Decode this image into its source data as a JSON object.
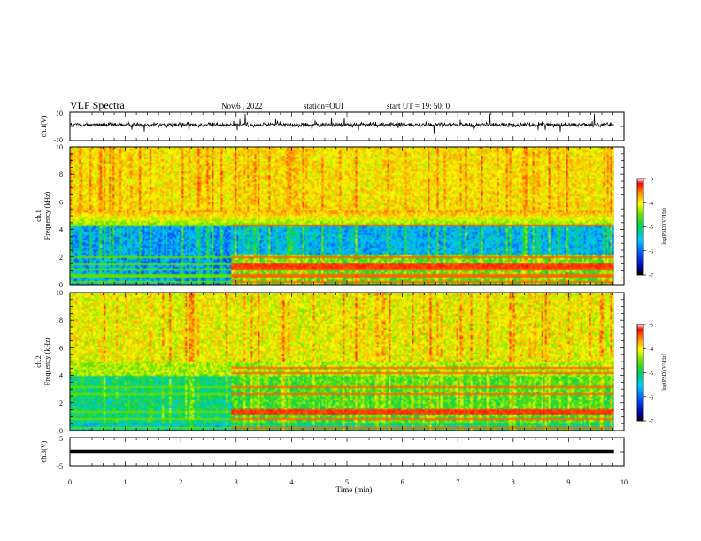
{
  "header": {
    "title": "VLF Spectra",
    "date": "Nov.6 , 2022",
    "station": "station=OUI",
    "start": "start UT =  19: 50: 0"
  },
  "chart_data": [
    {
      "type": "line",
      "panel": "ch1-waveform",
      "ylabel": "ch.1(V)",
      "ylim": [
        -10,
        10
      ],
      "yticks": [
        "10",
        "-10"
      ],
      "xlim": [
        0,
        9.82
      ],
      "baseline": 0,
      "note_values": "noisy signal centred slightly above 0 V with spikes to about ±8 V"
    },
    {
      "type": "heatmap",
      "panel": "ch1-spectrogram",
      "ylabel_top": "ch.1",
      "ylabel": "Frequency (kHz)",
      "ylim": [
        0,
        10
      ],
      "yticks": [
        "0",
        "2",
        "4",
        "6",
        "8",
        "10"
      ],
      "xlim": [
        0,
        9.82
      ],
      "colorbar": {
        "label": "log(PSD)(V²/Hz)",
        "range": [
          -7,
          -3
        ],
        "ticks": [
          "-3",
          "-4",
          "-5",
          "-6",
          "-7"
        ]
      },
      "regime_change_min": 2.9,
      "bands_khz": [
        0.3,
        0.7,
        1.2,
        1.5,
        2.0,
        4.4
      ]
    },
    {
      "type": "heatmap",
      "panel": "ch2-spectrogram",
      "ylabel_top": "ch.2",
      "ylabel": "Frequency (kHz)",
      "ylim": [
        0,
        10
      ],
      "yticks": [
        "0",
        "2",
        "4",
        "6",
        "8",
        "10"
      ],
      "xlim": [
        0,
        9.82
      ],
      "colorbar": {
        "label": "log(PSD)(V²/Hz)",
        "range": [
          -7,
          -3
        ],
        "ticks": [
          "-3",
          "-4",
          "-5",
          "-6",
          "-7"
        ]
      },
      "regime_change_min": 2.9,
      "bands_khz": [
        0.3,
        0.9,
        1.4,
        2.7,
        3.2,
        4.2,
        4.6
      ]
    },
    {
      "type": "line",
      "panel": "ch3-waveform",
      "ylabel": "ch.3(V)",
      "ylim": [
        -5,
        5
      ],
      "yticks": [
        "5",
        "-5"
      ],
      "xlim": [
        0,
        9.82
      ],
      "constant_value": 0,
      "xlabel": "Time (min)",
      "xticks": [
        "0",
        "1",
        "2",
        "3",
        "4",
        "5",
        "6",
        "7",
        "8",
        "9",
        "10"
      ]
    }
  ]
}
